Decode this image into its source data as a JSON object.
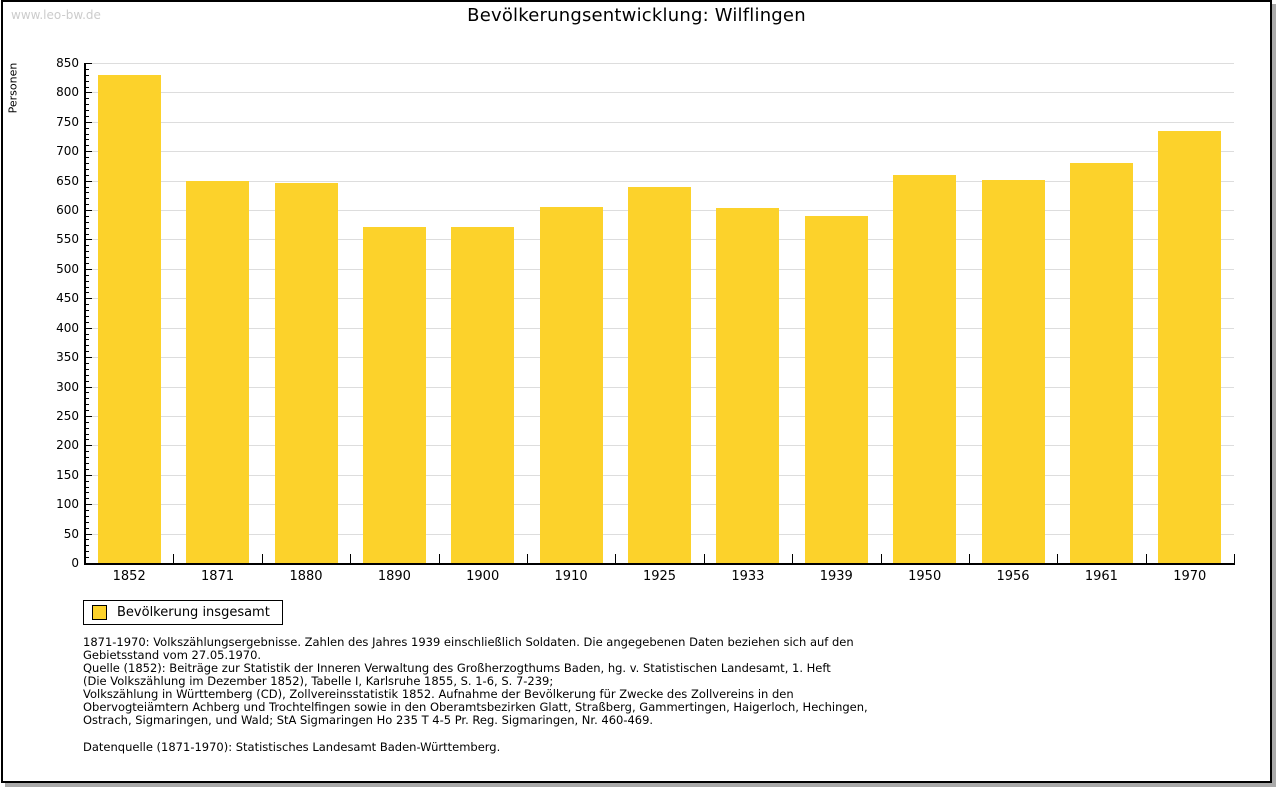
{
  "page": {
    "watermark": "www.leo-bw.de",
    "title": "Bevölkerungsentwicklung: Wilflingen"
  },
  "chart_data": {
    "type": "bar",
    "title": "Bevölkerungsentwicklung: Wilflingen",
    "xlabel": "",
    "ylabel": "Personen",
    "categories": [
      "1852",
      "1871",
      "1880",
      "1890",
      "1900",
      "1910",
      "1925",
      "1933",
      "1939",
      "1950",
      "1956",
      "1961",
      "1970"
    ],
    "series": [
      {
        "name": "Bevölkerung insgesamt",
        "values": [
          830,
          650,
          646,
          572,
          572,
          606,
          640,
          604,
          590,
          659,
          652,
          680,
          735
        ]
      }
    ],
    "ylim": [
      0,
      850
    ],
    "ytick_step": 50,
    "ytick_minor_step": 10,
    "grid": true,
    "legend_position": "bottom-left",
    "bar_color": "#FCD22B",
    "grid_color": "#DDDDDD"
  },
  "legend": {
    "label": "Bevölkerung insgesamt",
    "swatch_color": "#FCD22B"
  },
  "footer": {
    "lines": [
      "1871-1970: Volkszählungsergebnisse. Zahlen des Jahres 1939 einschließlich Soldaten. Die angegebenen Daten beziehen sich auf den",
      "Gebietsstand vom 27.05.1970.",
      "Quelle (1852): Beiträge zur Statistik der Inneren Verwaltung des Großherzogthums Baden, hg. v. Statistischen Landesamt, 1. Heft",
      "(Die Volkszählung im Dezember 1852), Tabelle I, Karlsruhe 1855, S. 1-6, S. 7-239;",
      "Volkszählung in Württemberg (CD), Zollvereinsstatistik 1852. Aufnahme der Bevölkerung für Zwecke des Zollvereins in den",
      "Obervogteiämtern Achberg und Trochtelfingen sowie in den Oberamtsbezirken Glatt, Straßberg, Gammertingen, Haigerloch, Hechingen,",
      "Ostrach, Sigmaringen, und Wald; StA Sigmaringen Ho 235 T 4-5 Pr. Reg. Sigmaringen, Nr. 460-469."
    ],
    "datasource": "Datenquelle (1871-1970): Statistisches Landesamt Baden-Württemberg."
  }
}
